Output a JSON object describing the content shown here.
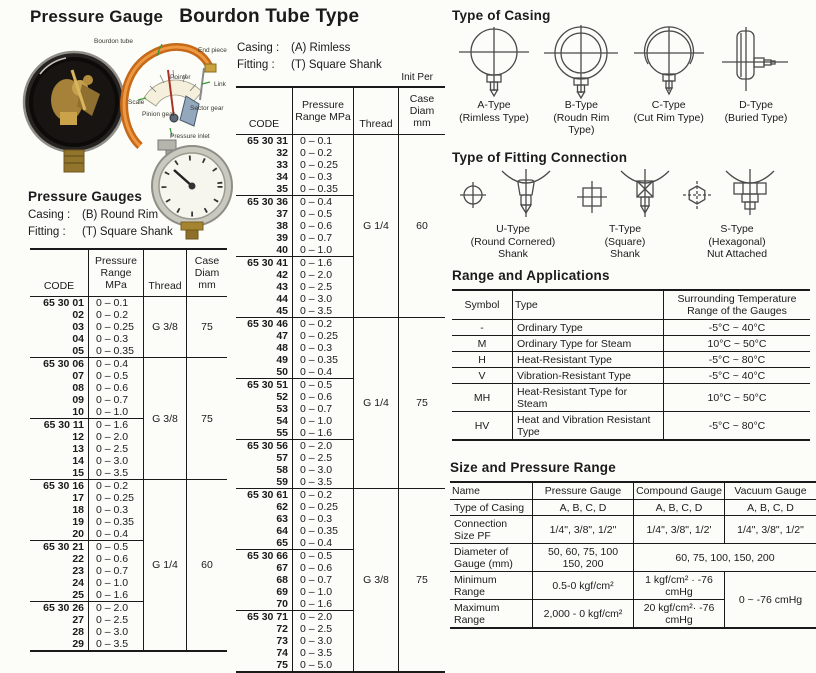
{
  "page": {
    "title1": "Pressure Gauge",
    "title2": "Bourdon Tube Type"
  },
  "left_section": {
    "heading": "Pressure Gauges",
    "casing_label": "Casing :",
    "casing_value": "(B) Round Rim",
    "fitting_label": "Fitting :",
    "fitting_value": "(T) Square Shank"
  },
  "middle_section": {
    "casing_label": "Casing :",
    "casing_value": "(A) Rimless",
    "fitting_label": "Fitting :",
    "fitting_value": "(T) Square Shank",
    "unit_note": "Init Per"
  },
  "diagram_labels": [
    "Bourdon tube",
    "End piece",
    "Pointer",
    "Link",
    "Scale",
    "Sector gear",
    "Pinion gear",
    "Pressure inlet"
  ],
  "code_table_headers": [
    "CODE",
    "Pressure Range MPa",
    "Thread",
    "Case Diam mm"
  ],
  "left_table": {
    "groups": [
      {
        "prefix": "65 30",
        "rows": [
          [
            "01",
            "0 – 0.1"
          ],
          [
            "02",
            "0 – 0.2"
          ],
          [
            "03",
            "0 – 0.25"
          ],
          [
            "04",
            "0 – 0.3"
          ],
          [
            "05",
            "0 – 0.35"
          ]
        ]
      },
      {
        "prefix": "65 30",
        "rows": [
          [
            "06",
            "0 – 0.4"
          ],
          [
            "07",
            "0 – 0.5"
          ],
          [
            "08",
            "0 – 0.6"
          ],
          [
            "09",
            "0 – 0.7"
          ],
          [
            "10",
            "0 – 1.0"
          ]
        ]
      },
      {
        "prefix": "65 30",
        "rows": [
          [
            "11",
            "0 – 1.6"
          ],
          [
            "12",
            "0 – 2.0"
          ],
          [
            "13",
            "0 – 2.5"
          ],
          [
            "14",
            "0 – 3.0"
          ],
          [
            "15",
            "0 – 3.5"
          ]
        ]
      },
      {
        "prefix": "65 30",
        "rows": [
          [
            "16",
            "0 – 0.2"
          ],
          [
            "17",
            "0 – 0.25"
          ],
          [
            "18",
            "0 – 0.3"
          ],
          [
            "19",
            "0 – 0.35"
          ],
          [
            "20",
            "0 – 0.4"
          ]
        ]
      },
      {
        "prefix": "65 30",
        "rows": [
          [
            "21",
            "0 – 0.5"
          ],
          [
            "22",
            "0 – 0.6"
          ],
          [
            "23",
            "0 – 0.7"
          ],
          [
            "24",
            "0 – 1.0"
          ],
          [
            "25",
            "0 – 1.6"
          ]
        ]
      },
      {
        "prefix": "65 30",
        "rows": [
          [
            "26",
            "0 – 2.0"
          ],
          [
            "27",
            "0 – 2.5"
          ],
          [
            "28",
            "0 – 3.0"
          ],
          [
            "29",
            "0 – 3.5"
          ]
        ]
      }
    ],
    "spans": [
      {
        "groups": [
          0
        ],
        "thread": "G 3/8",
        "case": "75"
      },
      {
        "groups": [
          1,
          2
        ],
        "thread": "G 3/8",
        "case": "75"
      },
      {
        "groups": [
          3,
          4,
          5
        ],
        "thread": "G 1/4",
        "case": "60"
      }
    ]
  },
  "middle_table": {
    "groups": [
      {
        "prefix": "65 30",
        "rows": [
          [
            "31",
            "0 – 0.1"
          ],
          [
            "32",
            "0 – 0.2"
          ],
          [
            "33",
            "0 – 0.25"
          ],
          [
            "34",
            "0 – 0.3"
          ],
          [
            "35",
            "0 – 0.35"
          ]
        ]
      },
      {
        "prefix": "65 30",
        "rows": [
          [
            "36",
            "0 – 0.4"
          ],
          [
            "37",
            "0 – 0.5"
          ],
          [
            "38",
            "0 – 0.6"
          ],
          [
            "39",
            "0 – 0.7"
          ],
          [
            "40",
            "0 – 1.0"
          ]
        ]
      },
      {
        "prefix": "65 30",
        "rows": [
          [
            "41",
            "0 – 1.6"
          ],
          [
            "42",
            "0 – 2.0"
          ],
          [
            "43",
            "0 – 2.5"
          ],
          [
            "44",
            "0 – 3.0"
          ],
          [
            "45",
            "0 – 3.5"
          ]
        ]
      },
      {
        "prefix": "65 30",
        "rows": [
          [
            "46",
            "0 – 0.2"
          ],
          [
            "47",
            "0 – 0.25"
          ],
          [
            "48",
            "0 – 0.3"
          ],
          [
            "49",
            "0 – 0.35"
          ],
          [
            "50",
            "0 – 0.4"
          ]
        ]
      },
      {
        "prefix": "65 30",
        "rows": [
          [
            "51",
            "0 – 0.5"
          ],
          [
            "52",
            "0 – 0.6"
          ],
          [
            "53",
            "0 – 0.7"
          ],
          [
            "54",
            "0 – 1.0"
          ],
          [
            "55",
            "0 – 1.6"
          ]
        ]
      },
      {
        "prefix": "65 30",
        "rows": [
          [
            "56",
            "0 – 2.0"
          ],
          [
            "57",
            "0 – 2.5"
          ],
          [
            "58",
            "0 – 3.0"
          ],
          [
            "59",
            "0 – 3.5"
          ]
        ]
      },
      {
        "prefix": "65 30",
        "rows": [
          [
            "61",
            "0 – 0.2"
          ],
          [
            "62",
            "0 – 0.25"
          ],
          [
            "63",
            "0 – 0.3"
          ],
          [
            "64",
            "0 – 0.35"
          ],
          [
            "65",
            "0 – 0.4"
          ]
        ]
      },
      {
        "prefix": "65 30",
        "rows": [
          [
            "66",
            "0 – 0.5"
          ],
          [
            "67",
            "0 – 0.6"
          ],
          [
            "68",
            "0 – 0.7"
          ],
          [
            "69",
            "0 – 1.0"
          ],
          [
            "70",
            "0 – 1.6"
          ]
        ]
      },
      {
        "prefix": "65 30",
        "rows": [
          [
            "71",
            "0 – 2.0"
          ],
          [
            "72",
            "0 – 2.5"
          ],
          [
            "73",
            "0 – 3.0"
          ],
          [
            "74",
            "0 – 3.5"
          ],
          [
            "75",
            "0 – 5.0"
          ]
        ]
      }
    ],
    "spans": [
      {
        "groups": [
          0,
          1,
          2
        ],
        "thread": "G 1/4",
        "case": "60"
      },
      {
        "groups": [
          3,
          4,
          5
        ],
        "thread": "G 1/4",
        "case": "75"
      },
      {
        "groups": [
          6,
          7,
          8
        ],
        "thread": "G 3/8",
        "case": "75"
      }
    ]
  },
  "casing_section": {
    "title": "Type of Casing",
    "items": [
      {
        "name": "A-Type",
        "desc": "(Rimless Type)",
        "icon": "rimless-gauge-icon"
      },
      {
        "name": "B-Type",
        "desc": "(Roudn Rim Type)",
        "icon": "round-rim-gauge-icon"
      },
      {
        "name": "C-Type",
        "desc": "(Cut Rim Type)",
        "icon": "cut-rim-gauge-icon"
      },
      {
        "name": "D-Type",
        "desc": "(Buried Type)",
        "icon": "buried-gauge-icon"
      }
    ]
  },
  "fitting_section": {
    "title": "Type of Fitting Connection",
    "items": [
      {
        "name": "U-Type",
        "desc": "(Round Cornered)",
        "desc2": "Shank",
        "icon": "round-cornered-shank-icon"
      },
      {
        "name": "T-Type",
        "desc": "(Square)",
        "desc2": "Shank",
        "icon": "square-shank-icon"
      },
      {
        "name": "S-Type",
        "desc": "(Hexagonal)",
        "desc2": "Nut Attached",
        "icon": "hexagonal-nut-icon"
      }
    ]
  },
  "range_applications": {
    "title": "Range and Applications",
    "headers": [
      "Symbol",
      "Type",
      "Surrounding Temperature Range of the Gauges"
    ],
    "rows": [
      [
        "-",
        "Ordinary Type",
        "-5°C ~ 40°C"
      ],
      [
        "M",
        "Ordinary Type for Steam",
        "10°C ~ 50°C"
      ],
      [
        "H",
        "Heat-Resistant Type",
        "-5°C ~ 80°C"
      ],
      [
        "V",
        "Vibration-Resistant Type",
        "-5°C ~ 40°C"
      ],
      [
        "MH",
        "Heat-Resistant Type for Steam",
        "10°C ~ 50°C"
      ],
      [
        "HV",
        "Heat and Vibration Resistant Type",
        "-5°C ~ 80°C"
      ]
    ]
  },
  "size_pressure": {
    "title": "Size and Pressure Range",
    "headers": [
      "Name",
      "Pressure Gauge",
      "Compound Gauge",
      "Vacuum Gauge"
    ],
    "rows": [
      {
        "label": "Type of Casing",
        "cells": [
          {
            "text": "A, B, C, D"
          },
          {
            "text": "A, B, C, D"
          },
          {
            "text": "A, B, C, D"
          }
        ]
      },
      {
        "label": "Connection Size PF",
        "cells": [
          {
            "text": "1/4\", 3/8\", 1/2\""
          },
          {
            "text": "1/4\", 3/8\", 1/2'"
          },
          {
            "text": "1/4\", 3/8\", 1/2\""
          }
        ]
      },
      {
        "label": "Diameter of Gauge (mm)",
        "cells": [
          {
            "text": "50, 60, 75, 100 150, 200"
          },
          {
            "text": "60, 75, 100, 150, 200",
            "colspan": 2
          }
        ]
      },
      {
        "label": "Minimum Range",
        "cells": [
          {
            "text": "0.5-0 kgf/cm²"
          },
          {
            "text": "1 kgf/cm² · -76 cmHg"
          },
          {
            "text": "0 ~ -76 cmHg",
            "rowspan": 2
          }
        ]
      },
      {
        "label": "Maximum Range",
        "cells": [
          {
            "text": "2,000 - 0 kgf/cm²"
          },
          {
            "text": "20 kgf/cm²· -76 cmHg"
          }
        ]
      }
    ]
  },
  "colors": {
    "bourdon_tube": "#c46a1a",
    "pointer_red": "#a83226",
    "label_arrow_green": "#3a9a3a",
    "brass": "#b8913f",
    "line_art": "#4a4a4a"
  }
}
